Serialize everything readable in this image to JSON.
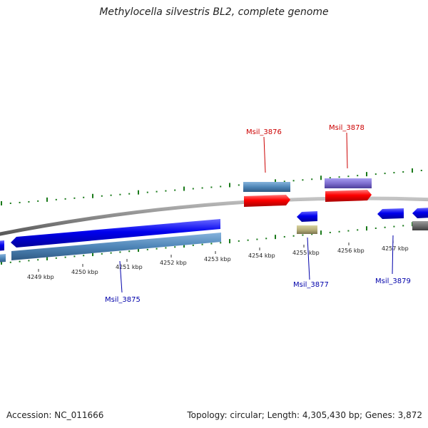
{
  "title": "Methylocella silvestris BL2, complete genome",
  "footer": {
    "accession": "Accession: NC_011666",
    "stats": "Topology: circular; Length: 4,305,430 bp; Genes: 3,872"
  },
  "colors": {
    "backbone": "#8a8a8a",
    "minus_cds": "#0000ee",
    "plus_cds": "#ff0000",
    "gene": "#4f86b8",
    "rna_or_other": "#7e6ed0",
    "pseudo": "#b8b07a",
    "misc": "#707070",
    "gc_tick": "#1a7a1a",
    "plus_label": "#cc0000",
    "minus_label": "#0000aa"
  },
  "scale_ticks": [
    {
      "label": "4249 kbp",
      "kbp": 4249
    },
    {
      "label": "4250 kbp",
      "kbp": 4250
    },
    {
      "label": "4251 kbp",
      "kbp": 4251
    },
    {
      "label": "4252 kbp",
      "kbp": 4252
    },
    {
      "label": "4253 kbp",
      "kbp": 4253
    },
    {
      "label": "4254 kbp",
      "kbp": 4254
    },
    {
      "label": "4255 kbp",
      "kbp": 4255
    },
    {
      "label": "4256 kbp",
      "kbp": 4256
    },
    {
      "label": "4257 kbp",
      "kbp": 4257
    }
  ],
  "gene_labels": [
    {
      "name": "Msil_3875",
      "strand": "minus"
    },
    {
      "name": "Msil_3876",
      "strand": "plus"
    },
    {
      "name": "Msil_3877",
      "strand": "minus"
    },
    {
      "name": "Msil_3878",
      "strand": "plus"
    },
    {
      "name": "Msil_3879",
      "strand": "minus"
    }
  ]
}
